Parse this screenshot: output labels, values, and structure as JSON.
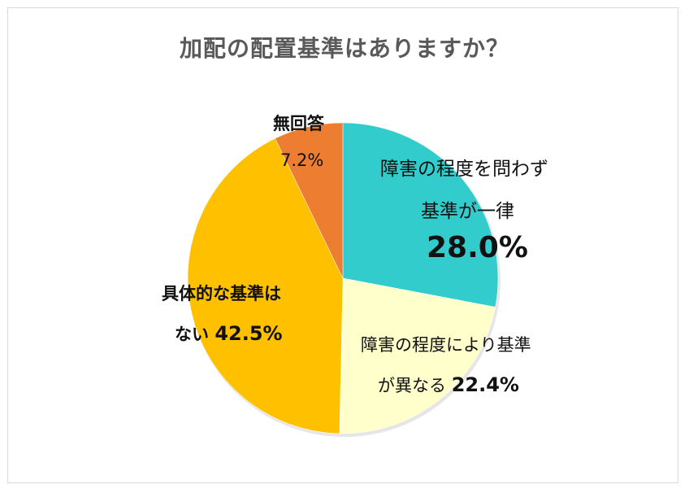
{
  "title": "加配の配置基準はありますか？",
  "colors": {
    "uniform": "#33CCCC",
    "varies": "#FFFFCC",
    "none": "#FFC000",
    "no_answer": "#ED7D31",
    "border": "#D9D9D9",
    "title": "#595959"
  },
  "labels": {
    "no_answer_line1": "無回答",
    "no_answer_pct": "7.2%",
    "uniform_line1": "障害の程度を問わず",
    "uniform_line2": "基準が一律",
    "uniform_pct": "28.0%",
    "none_line1": "具体的な基準は",
    "none_line2": "ない",
    "none_pct": "42.5%",
    "varies_line1": "障害の程度により基準",
    "varies_line2": "が異なる",
    "varies_pct": "22.4%"
  },
  "chart_data": {
    "type": "pie",
    "title": "加配の配置基準はありますか？",
    "start_angle": "12 o'clock",
    "direction": "clockwise",
    "categories": [
      "障害の程度を問わず基準が一律",
      "障害の程度により基準が異なる",
      "具体的な基準はない",
      "無回答"
    ],
    "values": [
      28.0,
      22.4,
      42.5,
      7.2
    ],
    "unit": "%",
    "colors": [
      "#33CCCC",
      "#FFFFCC",
      "#FFC000",
      "#ED7D31"
    ],
    "legend": "none (data labels on slices)"
  }
}
